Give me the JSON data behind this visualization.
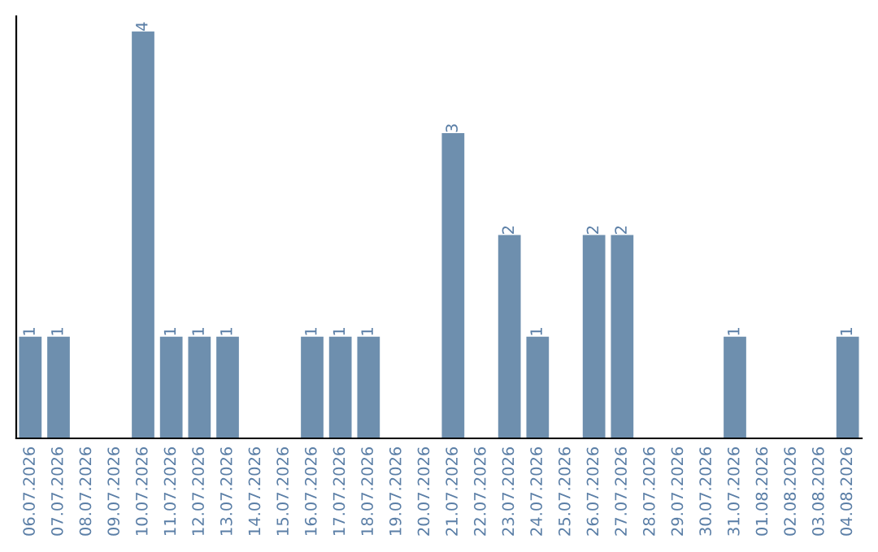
{
  "chart_data": {
    "type": "bar",
    "categories": [
      "06.07.2026",
      "07.07.2026",
      "08.07.2026",
      "09.07.2026",
      "10.07.2026",
      "11.07.2026",
      "12.07.2026",
      "13.07.2026",
      "14.07.2026",
      "15.07.2026",
      "16.07.2026",
      "17.07.2026",
      "18.07.2026",
      "19.07.2026",
      "20.07.2026",
      "21.07.2026",
      "22.07.2026",
      "23.07.2026",
      "24.07.2026",
      "25.07.2026",
      "26.07.2026",
      "27.07.2026",
      "28.07.2026",
      "29.07.2026",
      "30.07.2026",
      "31.07.2026",
      "01.08.2026",
      "02.08.2026",
      "03.08.2026",
      "04.08.2026"
    ],
    "values": [
      1,
      1,
      0,
      0,
      4,
      1,
      1,
      1,
      0,
      0,
      1,
      1,
      1,
      0,
      0,
      3,
      0,
      2,
      1,
      0,
      2,
      2,
      0,
      0,
      0,
      1,
      0,
      0,
      0,
      1
    ],
    "value_labels": [
      "1",
      "1",
      null,
      null,
      "4",
      "1",
      "1",
      "1",
      null,
      null,
      "1",
      "1",
      "1",
      null,
      null,
      "3",
      null,
      "2",
      "1",
      null,
      "2",
      "2",
      null,
      null,
      null,
      "1",
      null,
      null,
      null,
      "1"
    ],
    "color": "#6e8fae",
    "ylim": [
      0,
      4.15
    ],
    "tick_labels": "x",
    "grid": false,
    "legend": false
  }
}
